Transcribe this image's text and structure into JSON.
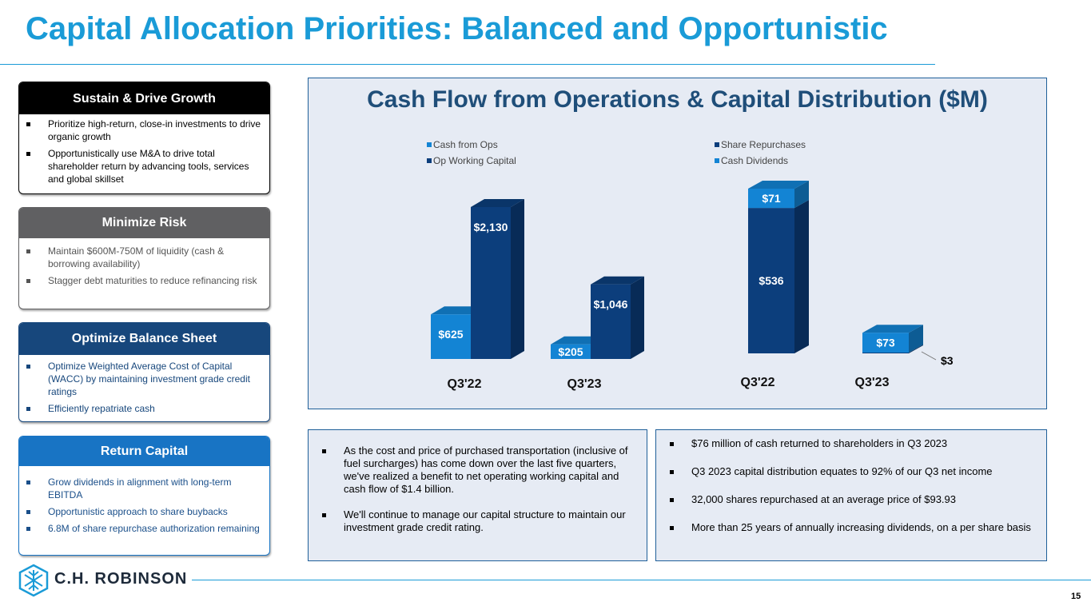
{
  "title": "Capital Allocation Priorities: Balanced and Opportunistic",
  "panels": [
    {
      "heading": "Sustain & Drive Growth",
      "items": [
        "Prioritize high-return, close-in investments to drive organic growth",
        "Opportunistically use M&A to drive total shareholder return by advancing tools, services and global skillset"
      ]
    },
    {
      "heading": "Minimize Risk",
      "items": [
        "Maintain $600M-750M of liquidity (cash & borrowing availability)",
        "Stagger debt maturities to reduce refinancing risk"
      ]
    },
    {
      "heading": "Optimize Balance Sheet",
      "items": [
        "Optimize Weighted Average Cost of Capital (WACC) by maintaining investment grade credit ratings",
        "Efficiently repatriate cash"
      ]
    },
    {
      "heading": "Return Capital",
      "items": [
        "Grow dividends in alignment with long-term EBITDA",
        "Opportunistic approach to share buybacks",
        "6.8M of share repurchase authorization remaining"
      ]
    }
  ],
  "chart_panel_title": "Cash Flow from Operations & Capital Distribution ($M)",
  "chart_data": [
    {
      "type": "bar",
      "categories": [
        "Q3'22",
        "Q3'23"
      ],
      "series": [
        {
          "name": "Cash from Ops",
          "color": "#1384d4",
          "values": [
            625,
            205
          ],
          "value_labels": [
            "$625",
            "$205"
          ]
        },
        {
          "name": "Op Working Capital",
          "color": "#0c3e7c",
          "values": [
            2130,
            1046
          ],
          "value_labels": [
            "$2,130",
            "$1,046"
          ]
        }
      ]
    },
    {
      "type": "bar",
      "stacked": true,
      "categories": [
        "Q3'22",
        "Q3'23"
      ],
      "series": [
        {
          "name": "Share Repurchases",
          "color": "#0c3e7c",
          "values": [
            536,
            3
          ],
          "value_labels": [
            "$536",
            "$3"
          ]
        },
        {
          "name": "Cash Dividends",
          "color": "#1384d4",
          "values": [
            71,
            73
          ],
          "value_labels": [
            "$71",
            "$73"
          ]
        }
      ]
    }
  ],
  "notes": [
    [
      "As the cost and price of purchased transportation (inclusive of fuel surcharges) has come down over the last five quarters, we've realized a benefit to net operating working capital and cash flow of $1.4 billion.",
      "We'll continue to manage our capital structure to maintain our investment grade credit rating."
    ],
    [
      "$76 million of cash returned to shareholders in Q3 2023",
      "Q3 2023 capital distribution equates to 92% of our Q3 net income",
      "32,000 shares repurchased at an average price of $93.93",
      "More than 25 years of annually increasing dividends, on a per share basis"
    ]
  ],
  "footer": {
    "logo": "C.H. ROBINSON",
    "page": 15
  }
}
